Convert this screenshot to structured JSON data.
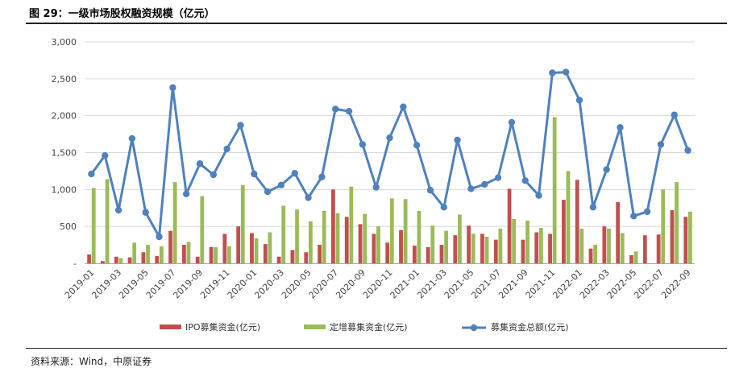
{
  "figure": {
    "title": "图 29：一级市场股权融资规模（亿元）",
    "source": "资料来源：Wind，中原证券"
  },
  "colors": {
    "ipo": "#C0504D",
    "placement": "#9BBB59",
    "total": "#4F81BD",
    "grid": "#D9D9D9",
    "axis": "#A6A6A6"
  },
  "chart_data": {
    "type": "bar+line",
    "title": "",
    "xlabel": "",
    "ylabel": "",
    "ylim": [
      0,
      3000
    ],
    "yticks": [
      0,
      500,
      1000,
      1500,
      2000,
      2500,
      3000
    ],
    "ytick_labels": [
      "-",
      "500",
      "1,000",
      "1,500",
      "2,000",
      "2,500",
      "3,000"
    ],
    "grid": true,
    "legend_position": "bottom",
    "categories": [
      "2019-01",
      "2019-02",
      "2019-03",
      "2019-04",
      "2019-05",
      "2019-06",
      "2019-07",
      "2019-08",
      "2019-09",
      "2019-10",
      "2019-11",
      "2019-12",
      "2020-01",
      "2020-02",
      "2020-03",
      "2020-04",
      "2020-05",
      "2020-06",
      "2020-07",
      "2020-08",
      "2020-09",
      "2020-10",
      "2020-11",
      "2020-12",
      "2021-01",
      "2021-02",
      "2021-03",
      "2021-04",
      "2021-05",
      "2021-06",
      "2021-07",
      "2021-08",
      "2021-09",
      "2021-10",
      "2021-11",
      "2021-12",
      "2022-01",
      "2022-02",
      "2022-03",
      "2022-04",
      "2022-05",
      "2022-06",
      "2022-07",
      "2022-08",
      "2022-09"
    ],
    "xtick_labels": [
      "2019-01",
      "",
      "2019-03",
      "",
      "2019-05",
      "",
      "2019-07",
      "",
      "2019-09",
      "",
      "2019-11",
      "",
      "2020-01",
      "",
      "2020-03",
      "",
      "2020-05",
      "",
      "2020-07",
      "",
      "2020-09",
      "",
      "2020-11",
      "",
      "2021-01",
      "",
      "2021-03",
      "",
      "2021-05",
      "",
      "2021-07",
      "",
      "2021-09",
      "",
      "2021-11",
      "",
      "2022-01",
      "",
      "2022-03",
      "",
      "2022-05",
      "",
      "2022-07",
      "",
      "2022-09"
    ],
    "series": [
      {
        "name": "IPO募集资金(亿元)",
        "type": "bar",
        "values": [
          120,
          30,
          90,
          80,
          150,
          100,
          440,
          250,
          90,
          220,
          400,
          500,
          410,
          260,
          90,
          180,
          150,
          250,
          1000,
          630,
          530,
          400,
          280,
          450,
          240,
          220,
          250,
          380,
          510,
          400,
          320,
          1010,
          320,
          420,
          400,
          860,
          1130,
          200,
          500,
          830,
          110,
          380,
          390,
          720,
          630
        ]
      },
      {
        "name": "定增募集资金(亿元)",
        "type": "bar",
        "values": [
          1020,
          1140,
          70,
          280,
          250,
          230,
          1100,
          290,
          910,
          220,
          230,
          1060,
          340,
          420,
          780,
          730,
          570,
          710,
          680,
          1040,
          670,
          500,
          880,
          870,
          710,
          510,
          440,
          660,
          400,
          360,
          470,
          600,
          580,
          480,
          1980,
          1250,
          470,
          250,
          470,
          410,
          160,
          0,
          1000,
          1100,
          700
        ]
      },
      {
        "name": "募集资金总额(亿元)",
        "type": "line",
        "values": [
          1210,
          1460,
          720,
          1690,
          690,
          360,
          2380,
          940,
          1350,
          1200,
          1550,
          1870,
          1210,
          970,
          1060,
          1220,
          890,
          1170,
          2090,
          2060,
          1610,
          1030,
          1700,
          2120,
          1600,
          990,
          760,
          1670,
          1010,
          1070,
          1160,
          1910,
          1120,
          920,
          2580,
          2590,
          2210,
          760,
          1270,
          1840,
          640,
          700,
          1610,
          2010,
          1530
        ]
      }
    ]
  }
}
